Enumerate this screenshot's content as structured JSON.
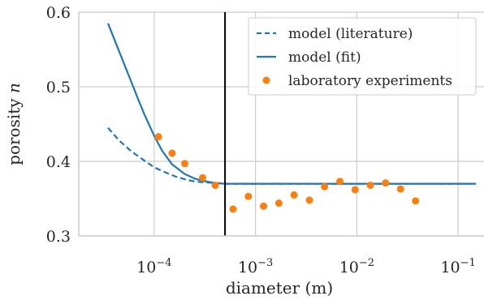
{
  "chart_data": {
    "type": "line",
    "xlabel": "diameter (m)",
    "ylabel": "porosity n",
    "xscale": "log",
    "xlim": [
      1.8e-05,
      0.18
    ],
    "ylim": [
      0.3,
      0.6
    ],
    "x_ticks": [
      0.0001,
      0.001,
      0.01,
      0.1
    ],
    "x_tick_labels": [
      {
        "base": "10",
        "exp": "−4"
      },
      {
        "base": "10",
        "exp": "−3"
      },
      {
        "base": "10",
        "exp": "−2"
      },
      {
        "base": "10",
        "exp": "−1"
      }
    ],
    "y_ticks": [
      0.3,
      0.4,
      0.5,
      0.6
    ],
    "y_tick_labels": [
      "0.3",
      "0.4",
      "0.5",
      "0.6"
    ],
    "grid": true,
    "legend_position": "top-right",
    "vertical_line": {
      "x": 0.0005,
      "color": "#000000"
    },
    "series": [
      {
        "name": "model (literature)",
        "style": "dashed",
        "color": "#1f77b4",
        "x": [
          3.5e-05,
          4.5e-05,
          6e-05,
          8e-05,
          0.0001,
          0.00013,
          0.00016,
          0.0002,
          0.00025,
          0.0003,
          0.0004,
          0.0005,
          0.0007,
          0.001,
          0.01,
          0.15
        ],
        "y": [
          0.445,
          0.428,
          0.413,
          0.401,
          0.392,
          0.385,
          0.38,
          0.376,
          0.373,
          0.372,
          0.371,
          0.37,
          0.37,
          0.37,
          0.37,
          0.37
        ]
      },
      {
        "name": "model (fit)",
        "style": "solid",
        "color": "#1f77b4",
        "x": [
          3.5e-05,
          4e-05,
          5e-05,
          6e-05,
          7e-05,
          8e-05,
          0.0001,
          0.00012,
          0.00015,
          0.0002,
          0.00025,
          0.0003,
          0.0004,
          0.0005,
          0.0006,
          0.001,
          0.01,
          0.15
        ],
        "y": [
          0.585,
          0.565,
          0.532,
          0.505,
          0.482,
          0.463,
          0.434,
          0.414,
          0.396,
          0.383,
          0.377,
          0.374,
          0.371,
          0.37,
          0.37,
          0.37,
          0.37,
          0.37
        ]
      },
      {
        "name": "laboratory experiments",
        "style": "points",
        "color": "#ff7f0e",
        "x": [
          0.00011,
          0.00015,
          0.0002,
          0.0003,
          0.0004,
          0.0006,
          0.00085,
          0.0012,
          0.0017,
          0.0024,
          0.0034,
          0.0048,
          0.0068,
          0.0096,
          0.0136,
          0.0192,
          0.027,
          0.038
        ],
        "y": [
          0.433,
          0.411,
          0.397,
          0.378,
          0.368,
          0.336,
          0.353,
          0.34,
          0.344,
          0.355,
          0.348,
          0.366,
          0.373,
          0.362,
          0.368,
          0.371,
          0.363,
          0.347
        ]
      }
    ]
  }
}
